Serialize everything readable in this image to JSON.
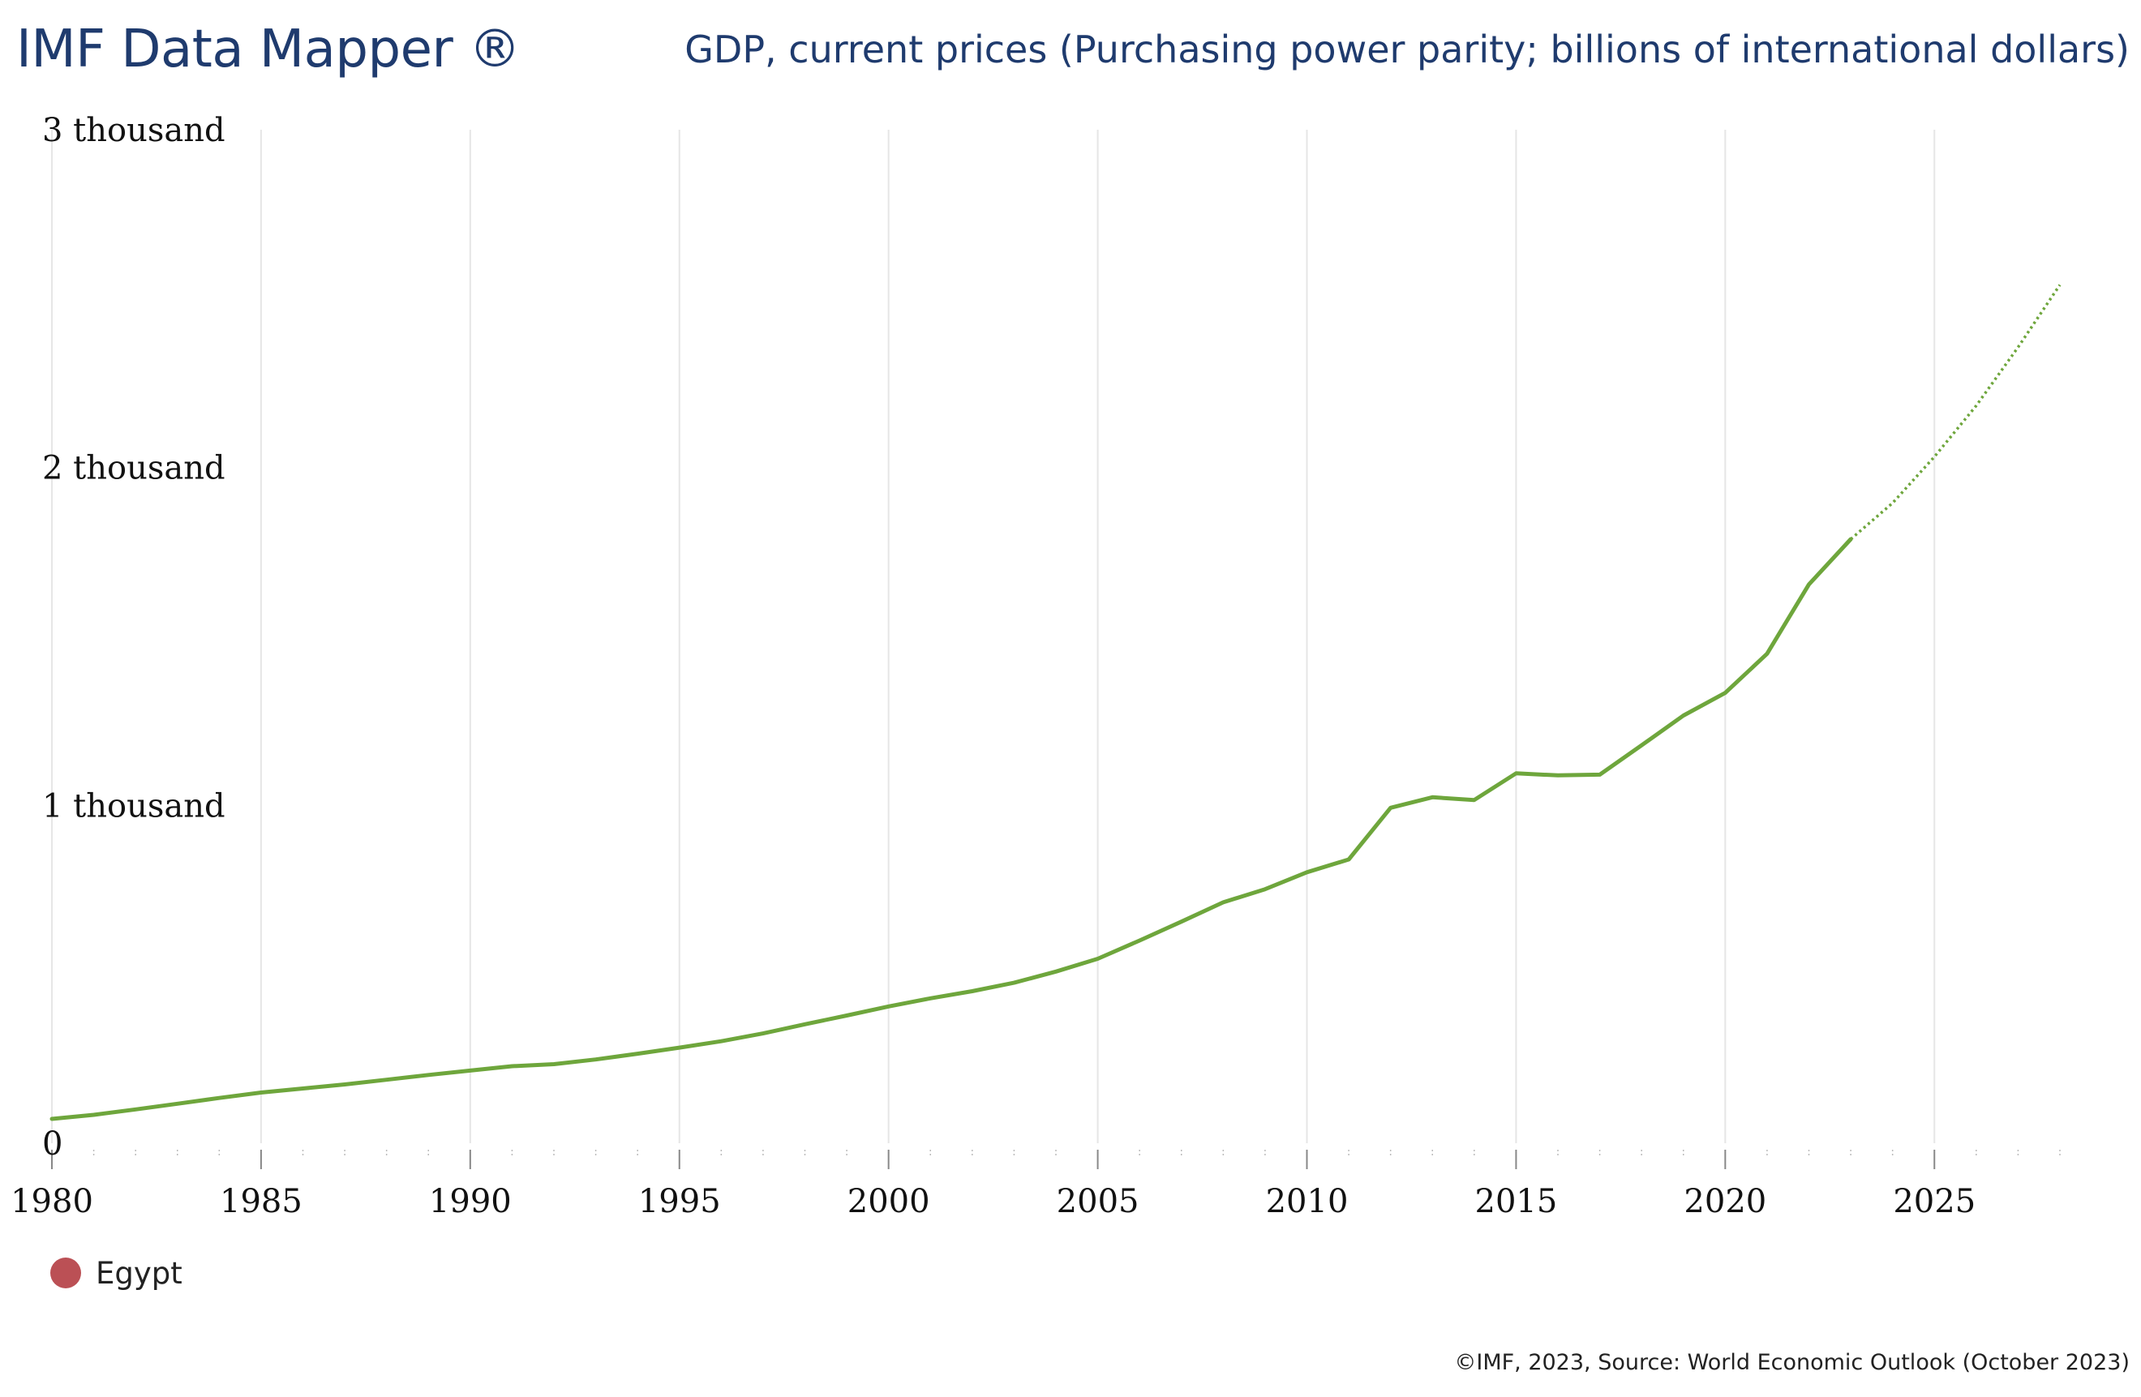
{
  "header": {
    "brand": "IMF Data Mapper ®",
    "title": "GDP, current prices (Purchasing power parity; billions of international dollars)"
  },
  "legend": {
    "label": "Egypt",
    "marker_color": "#bb5055"
  },
  "footer": {
    "source": "©IMF, 2023, Source: World Economic Outlook (October 2023)"
  },
  "colors": {
    "line": "#6ea63c",
    "grid": "#e6e6e6",
    "text": "#1f3b6e"
  },
  "chart_data": {
    "type": "line",
    "title": "GDP, current prices (Purchasing power parity; billions of international dollars)",
    "xlabel": "",
    "ylabel": "",
    "xlim": [
      1980,
      2028
    ],
    "ylim": [
      0,
      3000
    ],
    "grid": true,
    "legend_position": "bottom-left",
    "y_ticks": [
      {
        "value": 0,
        "label": "0"
      },
      {
        "value": 1000,
        "label": "1 thousand"
      },
      {
        "value": 2000,
        "label": "2 thousand"
      },
      {
        "value": 3000,
        "label": "3 thousand"
      }
    ],
    "x_ticks": [
      1980,
      1985,
      1990,
      1995,
      2000,
      2005,
      2010,
      2015,
      2020,
      2025
    ],
    "series": [
      {
        "name": "Egypt",
        "x": [
          1980,
          1981,
          1982,
          1983,
          1984,
          1985,
          1986,
          1987,
          1988,
          1989,
          1990,
          1991,
          1992,
          1993,
          1994,
          1995,
          1996,
          1997,
          1998,
          1999,
          2000,
          2001,
          2002,
          2003,
          2004,
          2005,
          2006,
          2007,
          2008,
          2009,
          2010,
          2011,
          2012,
          2013,
          2014,
          2015,
          2016,
          2017,
          2018,
          2019,
          2020,
          2021,
          2022,
          2023
        ],
        "values": [
          72,
          84,
          100,
          117,
          134,
          150,
          162,
          174,
          188,
          202,
          215,
          228,
          234,
          248,
          265,
          283,
          302,
          325,
          352,
          378,
          405,
          429,
          450,
          475,
          508,
          546,
          600,
          656,
          713,
          752,
          802,
          840,
          993,
          1024,
          1016,
          1095,
          1089,
          1091,
          1178,
          1266,
          1333,
          1449,
          1654,
          1788
        ],
        "projection": {
          "x": [
            2023,
            2024,
            2025,
            2026,
            2027,
            2028
          ],
          "values": [
            1788,
            1895,
            2032,
            2183,
            2356,
            2541
          ]
        }
      }
    ]
  }
}
